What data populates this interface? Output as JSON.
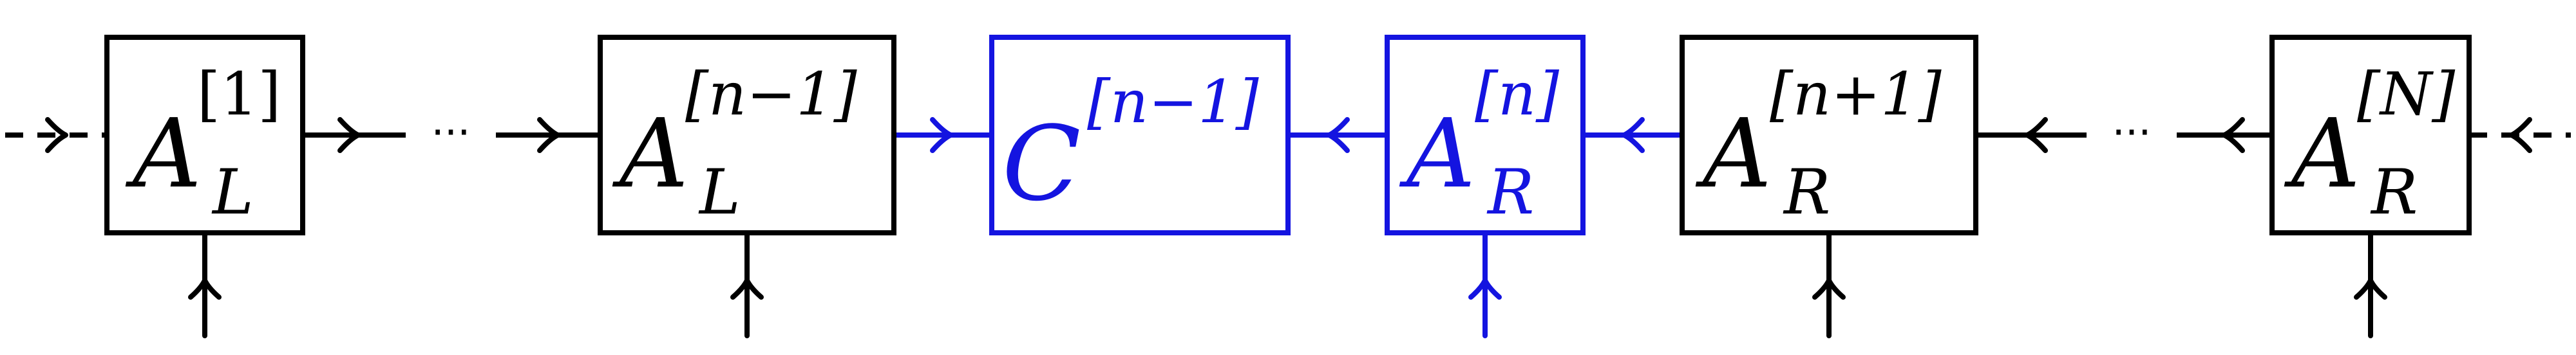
{
  "colors": {
    "default": "#000000",
    "highlight": "#1414e0"
  },
  "tensors": [
    {
      "id": "a-l-1",
      "base": "A",
      "sup": "[1]",
      "sub": "L",
      "highlight": false
    },
    {
      "id": "a-l-nm1",
      "base": "A",
      "sup": "[n−1]",
      "sub": "L",
      "highlight": false
    },
    {
      "id": "c-nm1",
      "base": "C",
      "sup": "[n−1]",
      "sub": "",
      "highlight": true
    },
    {
      "id": "a-r-n",
      "base": "A",
      "sup": "[n]",
      "sub": "R",
      "highlight": true
    },
    {
      "id": "a-r-np1",
      "base": "A",
      "sup": "[n+1]",
      "sub": "R",
      "highlight": false
    },
    {
      "id": "a-r-N",
      "base": "A",
      "sup": "[N]",
      "sub": "R",
      "highlight": false
    }
  ],
  "ellipses": [
    "···",
    "···"
  ]
}
